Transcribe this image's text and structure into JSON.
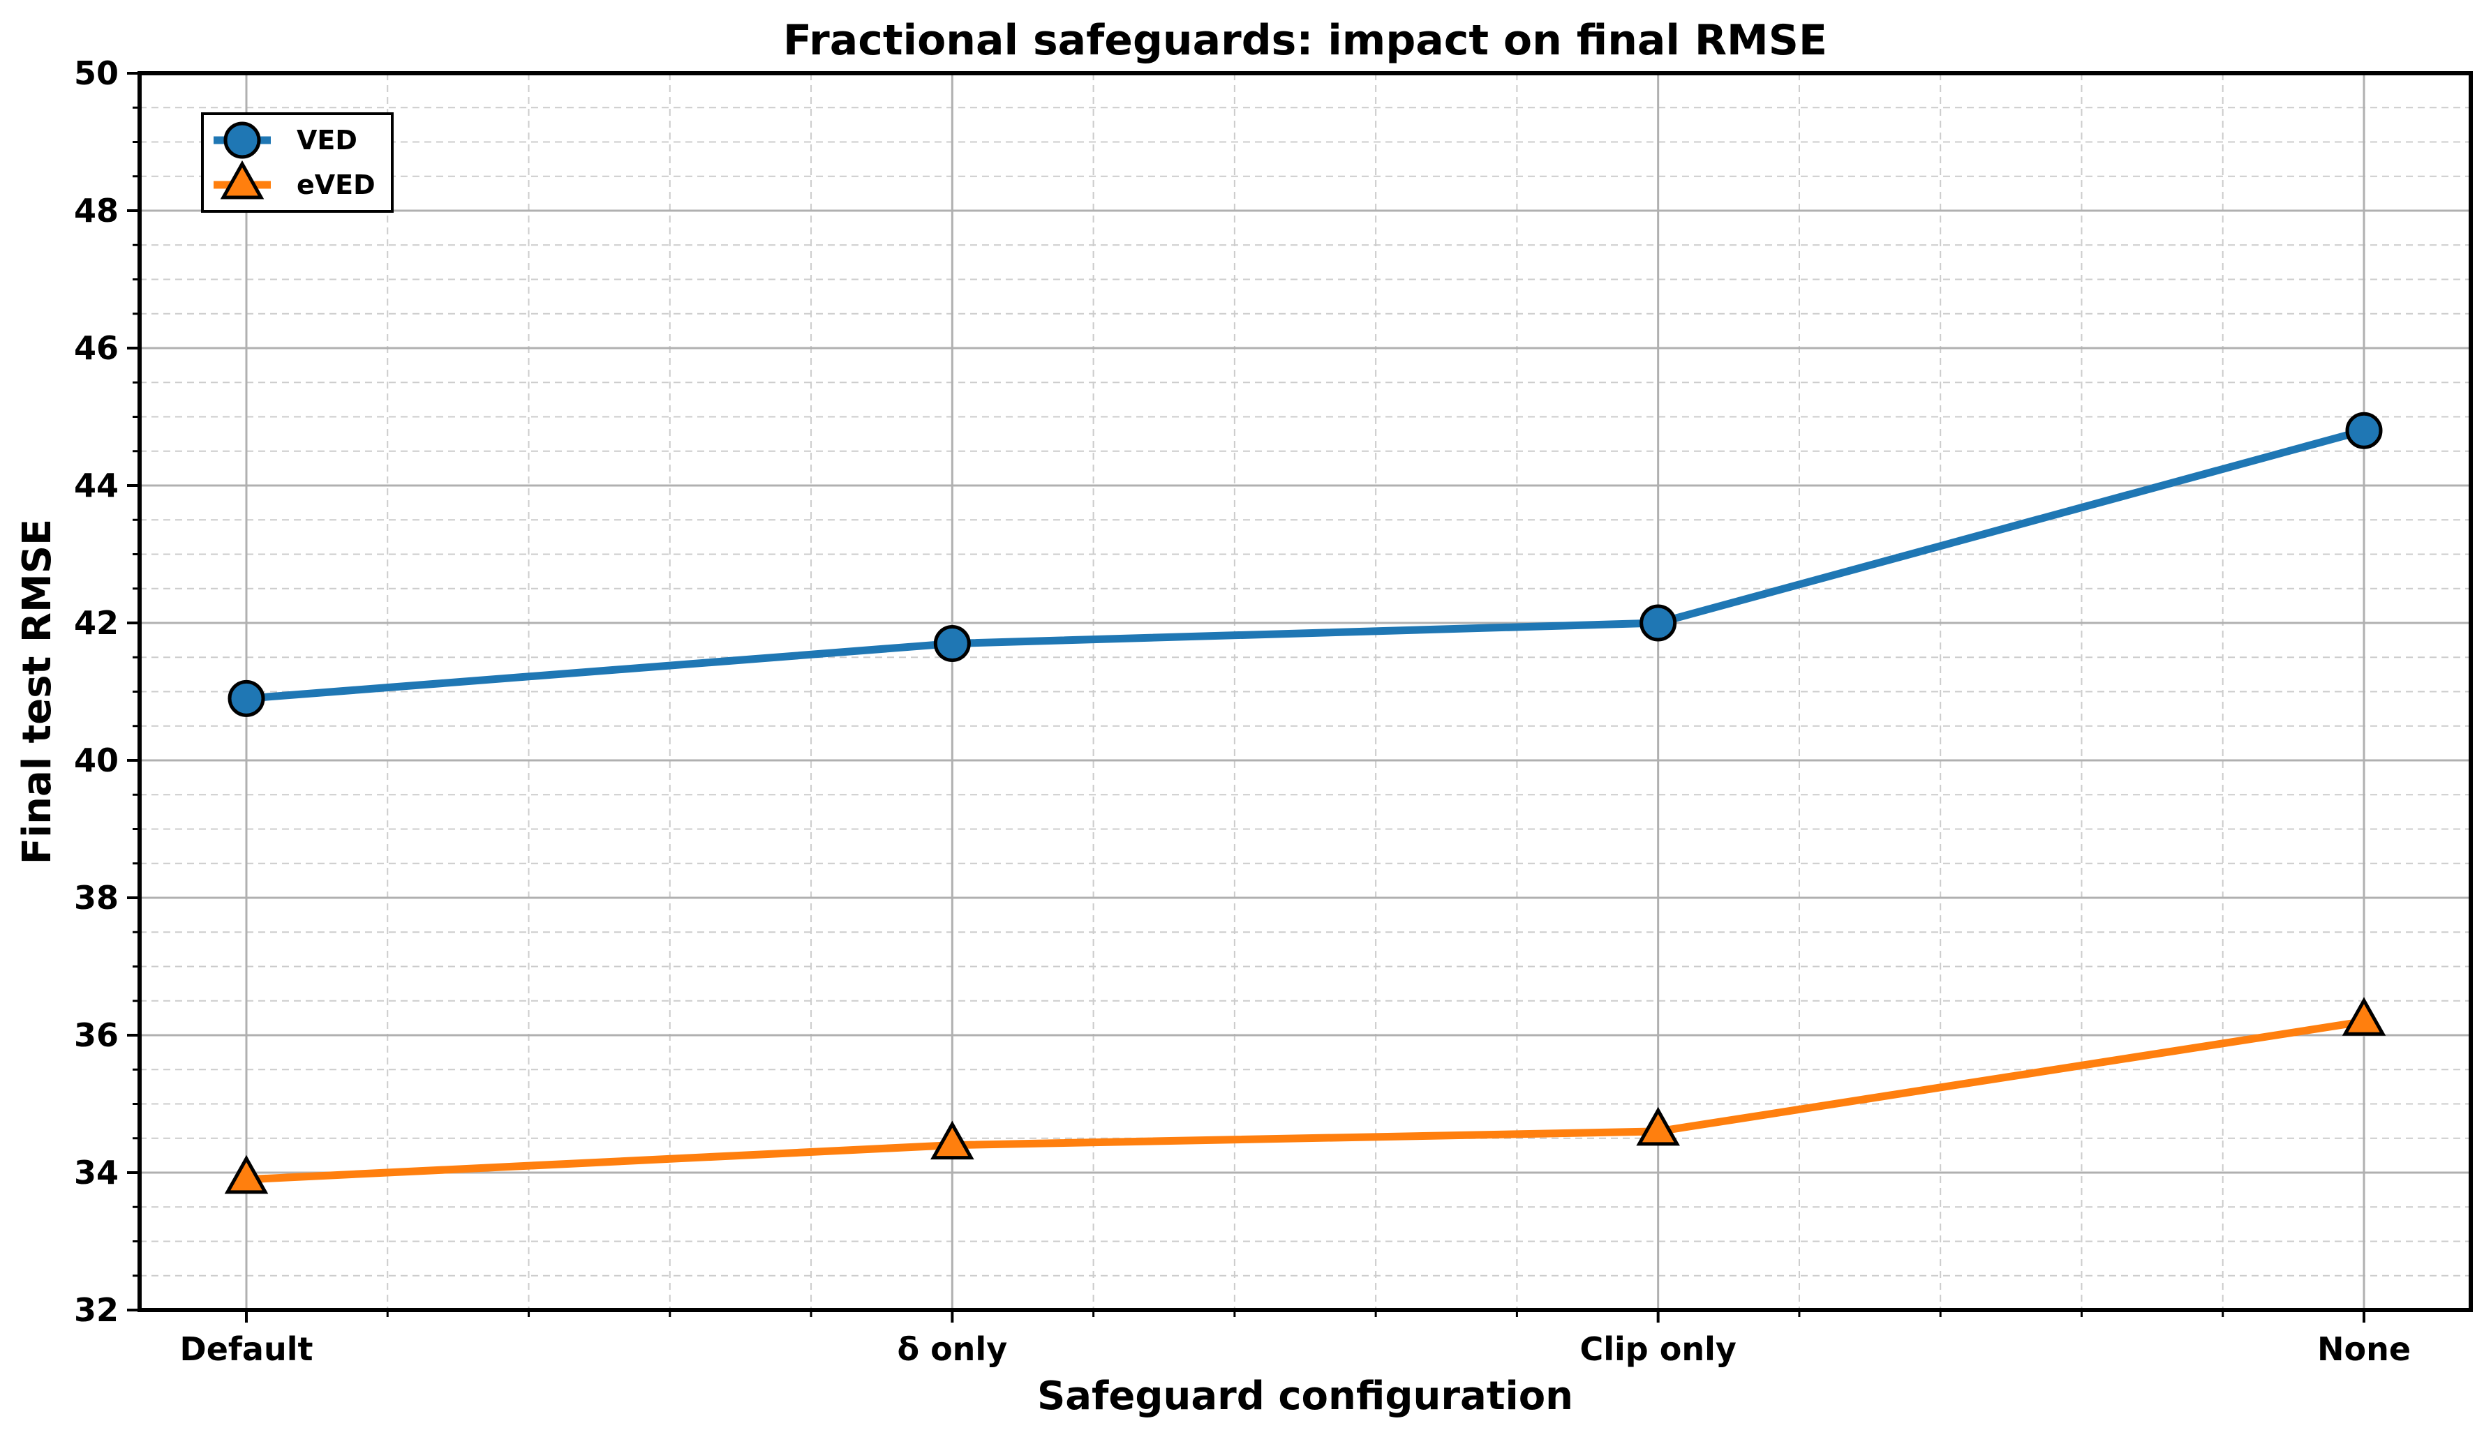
{
  "chart_data": {
    "type": "line",
    "title": "Fractional safeguards: impact on final RMSE",
    "xlabel": "Safeguard configuration",
    "ylabel": "Final test RMSE",
    "categories": [
      "Default",
      "δ only",
      "Clip only",
      "None"
    ],
    "ylim": [
      32,
      50
    ],
    "yticks": [
      32,
      34,
      36,
      38,
      40,
      42,
      44,
      46,
      48,
      50
    ],
    "grid": true,
    "legend_position": "top-left",
    "series": [
      {
        "name": "VED",
        "values": [
          40.9,
          41.7,
          42.0,
          44.8
        ],
        "color": "#1f77b4",
        "marker": "circle"
      },
      {
        "name": "eVED",
        "values": [
          33.9,
          34.4,
          34.6,
          36.2
        ],
        "color": "#ff7f0e",
        "marker": "triangle"
      }
    ]
  }
}
